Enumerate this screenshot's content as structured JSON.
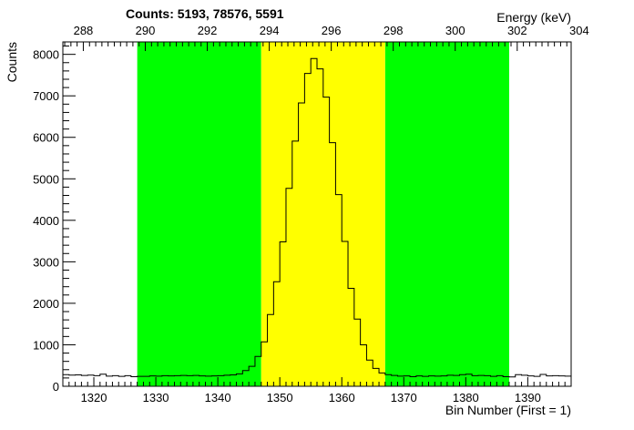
{
  "chart_data": {
    "type": "histogram",
    "title": "Counts:   5193,   78576,   5591",
    "xlabel": "Bin Number (First = 1)",
    "ylabel": "Counts",
    "top_axis_label": "Energy (keV)",
    "xlim": [
      1315,
      1397
    ],
    "ylim": [
      0,
      8300
    ],
    "x_ticks": [
      "1320",
      "1330",
      "1340",
      "1350",
      "1360",
      "1370",
      "1380",
      "1390"
    ],
    "y_ticks": [
      "0",
      "1000",
      "2000",
      "3000",
      "4000",
      "5000",
      "6000",
      "7000",
      "8000"
    ],
    "top_ticks": [
      "288",
      "290",
      "292",
      "294",
      "296",
      "298",
      "300",
      "302",
      "304"
    ],
    "top_tick_bins": [
      1318.3,
      1328.3,
      1338.3,
      1348.3,
      1358.3,
      1368.3,
      1378.3,
      1388.3,
      1398.3
    ],
    "grid": false,
    "regions": [
      {
        "from": 1327,
        "to": 1347,
        "color": "#00ff00"
      },
      {
        "from": 1347,
        "to": 1367,
        "color": "#ffff00"
      },
      {
        "from": 1367,
        "to": 1387,
        "color": "#00ff00"
      }
    ],
    "bin_start": 1315,
    "bin_width": 1,
    "values": [
      280,
      270,
      275,
      260,
      270,
      255,
      290,
      245,
      255,
      240,
      255,
      230,
      240,
      240,
      250,
      245,
      255,
      250,
      255,
      260,
      255,
      260,
      250,
      245,
      250,
      255,
      265,
      275,
      300,
      380,
      480,
      720,
      1070,
      1730,
      2520,
      3480,
      4770,
      5910,
      6830,
      7540,
      7900,
      7650,
      6970,
      5870,
      4620,
      3490,
      2360,
      1620,
      1000,
      630,
      430,
      320,
      280,
      260,
      245,
      250,
      230,
      250,
      240,
      250,
      245,
      250,
      265,
      260,
      280,
      290,
      255,
      260,
      255,
      240,
      255,
      230,
      225,
      280,
      265,
      250,
      240,
      285,
      250,
      255,
      250,
      245
    ],
    "line_color": "#000000"
  }
}
